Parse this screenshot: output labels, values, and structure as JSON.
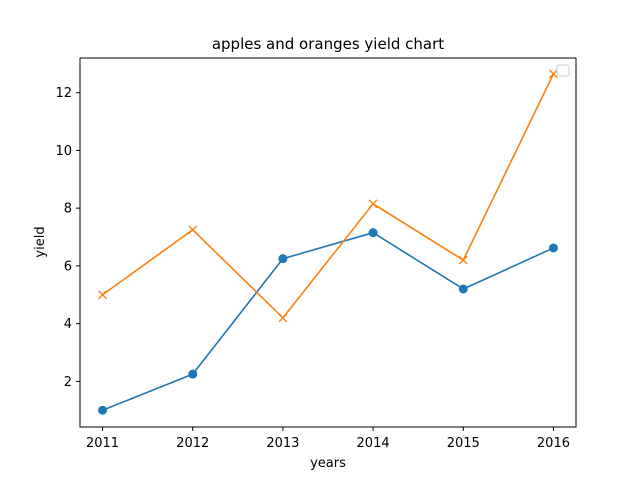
{
  "chart_data": {
    "type": "line",
    "title": "apples and oranges yield chart",
    "xlabel": "years",
    "ylabel": "yield",
    "x": [
      2011,
      2012,
      2013,
      2014,
      2015,
      2016
    ],
    "xlim": [
      2010.75,
      2016.25
    ],
    "ylim": [
      0.42,
      13.2
    ],
    "yticks": [
      2,
      4,
      6,
      8,
      10,
      12
    ],
    "grid": false,
    "legend": {
      "placement": "top-right",
      "entries": []
    },
    "series": [
      {
        "values": [
          1.0,
          2.25,
          6.25,
          7.15,
          5.2,
          6.62
        ],
        "color": "#1f77b4",
        "marker": "circle"
      },
      {
        "values": [
          5.0,
          7.25,
          4.2,
          8.15,
          6.2,
          12.65
        ],
        "color": "#ff7f0e",
        "marker": "x"
      }
    ]
  }
}
